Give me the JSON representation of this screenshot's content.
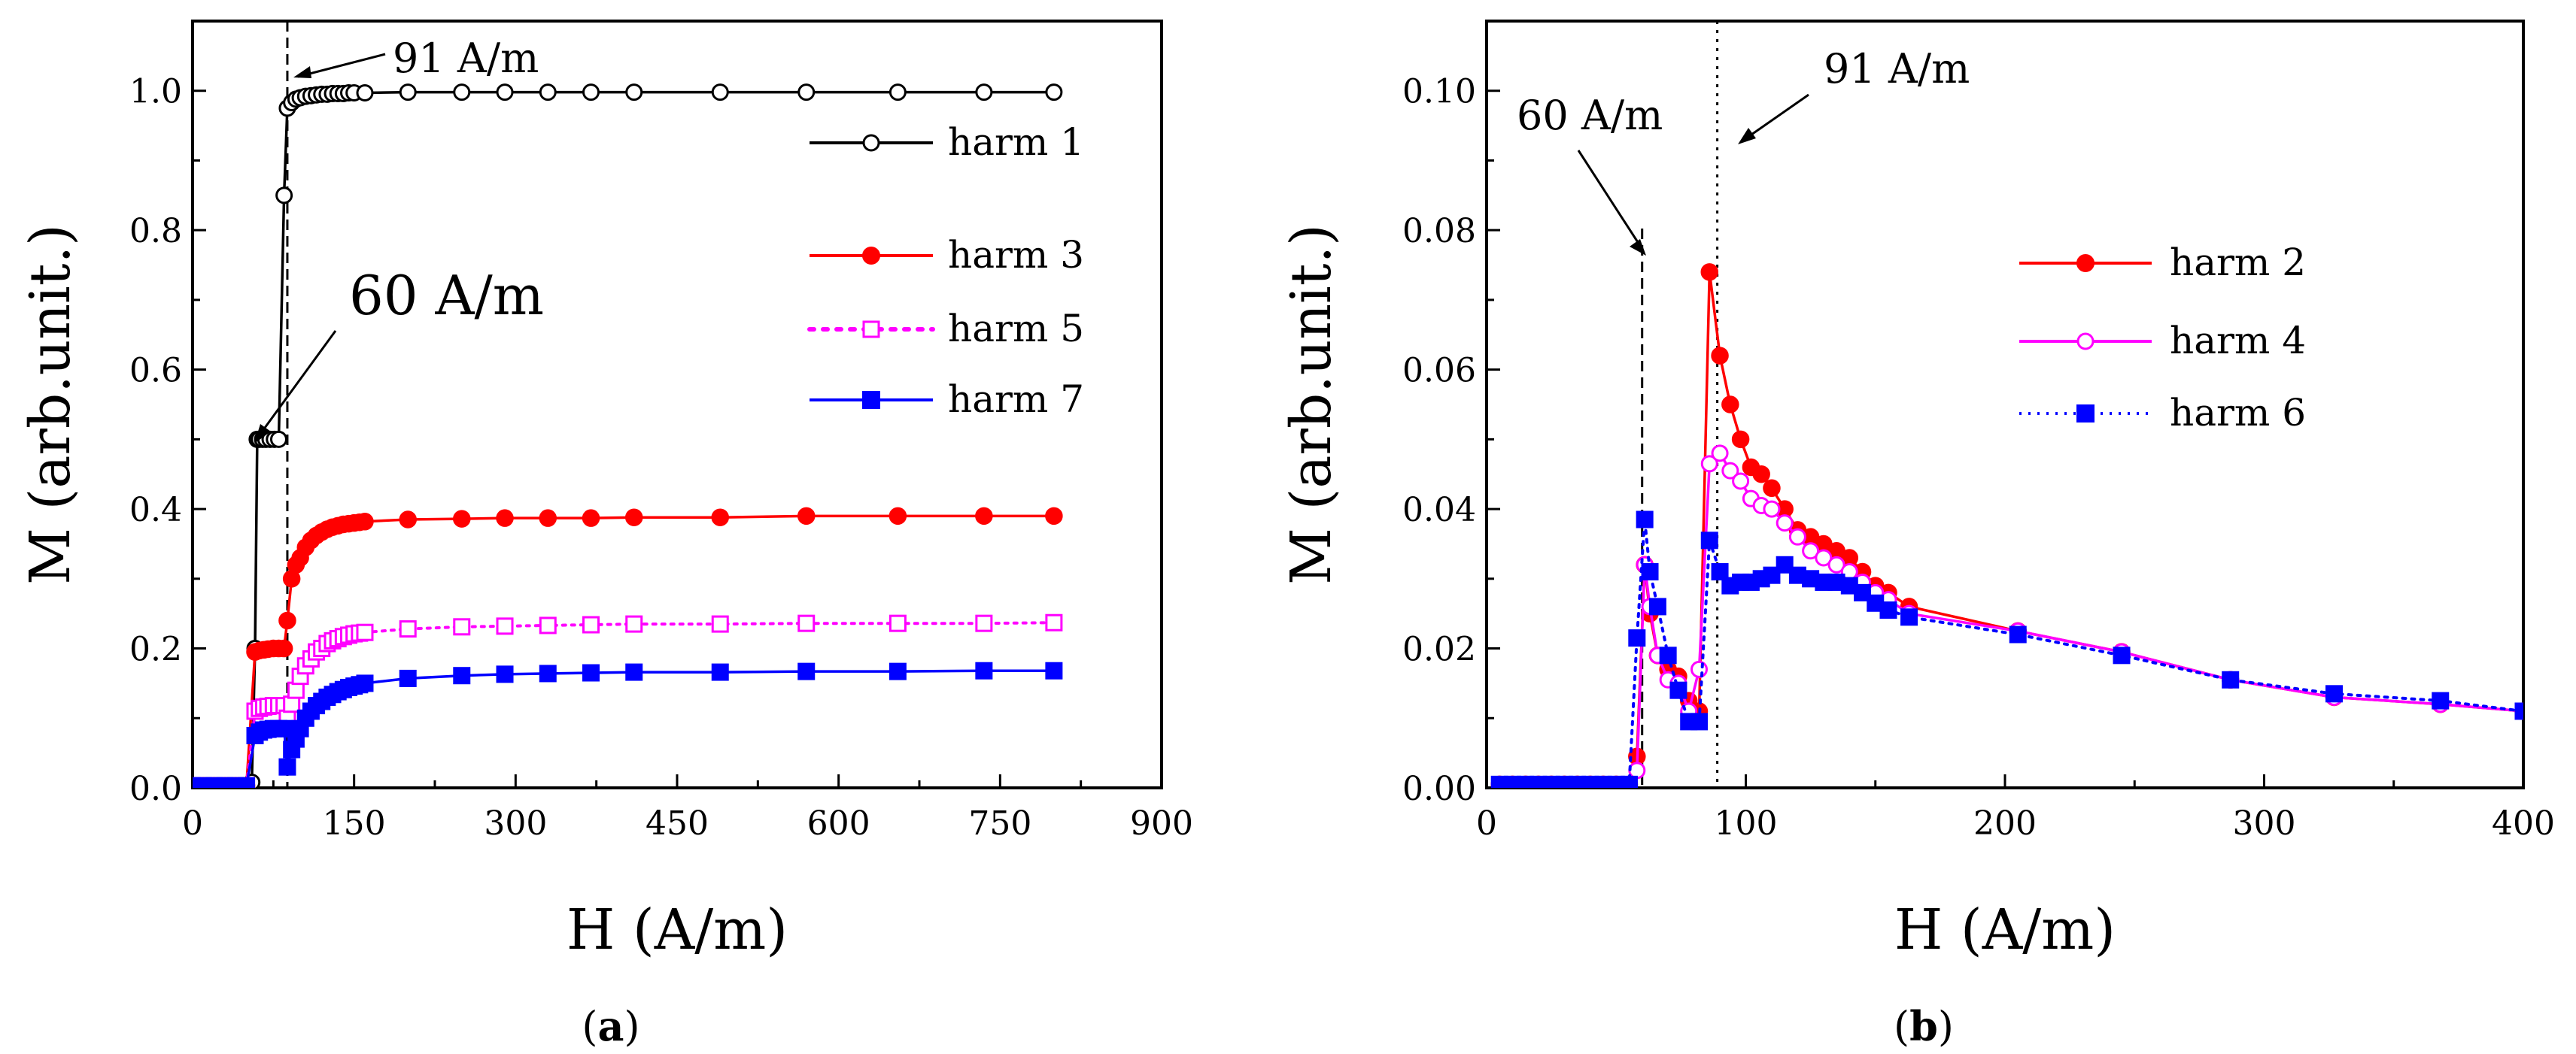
{
  "figure": {
    "panels": [
      "(a)",
      "(b)"
    ]
  },
  "chart_data": [
    {
      "type": "scatter",
      "panel": "a",
      "caption": "(a)",
      "caption_letter": "a",
      "xlabel": "H (A/m)",
      "ylabel": "M (arb.unit.)",
      "xlim": [
        0,
        900
      ],
      "ylim": [
        0,
        1.1
      ],
      "xticks": [
        0,
        150,
        300,
        450,
        600,
        750,
        900
      ],
      "yticks": [
        0.0,
        0.2,
        0.4,
        0.6,
        0.8,
        1.0
      ],
      "xtick_labels": [
        "0",
        "150",
        "300",
        "450",
        "600",
        "750",
        "900"
      ],
      "ytick_labels": [
        "0.0",
        "0.2",
        "0.4",
        "0.6",
        "0.8",
        "1.0"
      ],
      "legend_position": "right",
      "annotations": [
        {
          "text": "91 A/m",
          "style": "small"
        },
        {
          "text": "60 A/m",
          "style": "big"
        }
      ],
      "vlines": [
        88
      ],
      "series": [
        {
          "name": "harm 1",
          "color": "#000000",
          "marker": "open-circle",
          "line": "solid",
          "x": [
            0,
            10,
            20,
            30,
            40,
            50,
            55,
            58,
            60,
            62,
            65,
            68,
            72,
            76,
            80,
            85,
            88,
            92,
            96,
            100,
            105,
            110,
            115,
            120,
            125,
            130,
            135,
            140,
            145,
            150,
            160,
            200,
            250,
            290,
            330,
            370,
            410,
            490,
            570,
            655,
            735,
            800
          ],
          "y": [
            0.003,
            0.003,
            0.003,
            0.003,
            0.003,
            0.003,
            0.008,
            0.2,
            0.5,
            0.5,
            0.5,
            0.5,
            0.5,
            0.5,
            0.5,
            0.85,
            0.975,
            0.983,
            0.988,
            0.99,
            0.992,
            0.993,
            0.994,
            0.995,
            0.995,
            0.996,
            0.996,
            0.996,
            0.997,
            0.997,
            0.997,
            0.998,
            0.998,
            0.998,
            0.998,
            0.998,
            0.998,
            0.998,
            0.998,
            0.998,
            0.998,
            0.998
          ]
        },
        {
          "name": "harm 3",
          "color": "#ff0000",
          "marker": "filled-circle",
          "line": "solid",
          "x": [
            0,
            10,
            20,
            30,
            40,
            50,
            58,
            62,
            66,
            70,
            75,
            80,
            85,
            88,
            92,
            96,
            100,
            105,
            110,
            115,
            120,
            125,
            130,
            135,
            140,
            145,
            150,
            155,
            160,
            200,
            250,
            290,
            330,
            370,
            410,
            490,
            570,
            655,
            735,
            800
          ],
          "y": [
            0.003,
            0.003,
            0.003,
            0.003,
            0.003,
            0.003,
            0.195,
            0.197,
            0.198,
            0.199,
            0.2,
            0.2,
            0.2,
            0.24,
            0.3,
            0.32,
            0.33,
            0.345,
            0.355,
            0.362,
            0.367,
            0.371,
            0.374,
            0.376,
            0.378,
            0.379,
            0.38,
            0.381,
            0.382,
            0.385,
            0.386,
            0.387,
            0.387,
            0.387,
            0.388,
            0.388,
            0.39,
            0.39,
            0.39,
            0.39
          ]
        },
        {
          "name": "harm 5",
          "color": "#ff00ff",
          "marker": "open-square",
          "line": "dotted",
          "x": [
            0,
            10,
            20,
            30,
            40,
            50,
            58,
            62,
            66,
            70,
            75,
            80,
            85,
            88,
            92,
            96,
            100,
            105,
            110,
            115,
            120,
            125,
            130,
            135,
            140,
            145,
            150,
            155,
            160,
            200,
            250,
            290,
            330,
            370,
            410,
            490,
            570,
            655,
            735,
            800
          ],
          "y": [
            0.003,
            0.003,
            0.003,
            0.003,
            0.003,
            0.003,
            0.11,
            0.114,
            0.116,
            0.117,
            0.118,
            0.118,
            0.118,
            0.1,
            0.12,
            0.14,
            0.16,
            0.175,
            0.185,
            0.195,
            0.2,
            0.207,
            0.211,
            0.214,
            0.217,
            0.219,
            0.221,
            0.222,
            0.223,
            0.228,
            0.231,
            0.232,
            0.233,
            0.234,
            0.235,
            0.235,
            0.236,
            0.236,
            0.236,
            0.237
          ]
        },
        {
          "name": "harm 7",
          "color": "#0000ff",
          "marker": "filled-square",
          "line": "solid",
          "x": [
            0,
            10,
            20,
            30,
            40,
            50,
            58,
            62,
            66,
            70,
            75,
            80,
            85,
            88,
            92,
            96,
            100,
            105,
            110,
            115,
            120,
            125,
            130,
            135,
            140,
            145,
            150,
            155,
            160,
            200,
            250,
            290,
            330,
            370,
            410,
            490,
            570,
            655,
            735,
            800
          ],
          "y": [
            0.003,
            0.003,
            0.003,
            0.003,
            0.003,
            0.003,
            0.075,
            0.08,
            0.083,
            0.084,
            0.085,
            0.085,
            0.085,
            0.03,
            0.055,
            0.07,
            0.085,
            0.1,
            0.11,
            0.118,
            0.124,
            0.13,
            0.134,
            0.138,
            0.141,
            0.144,
            0.146,
            0.148,
            0.15,
            0.157,
            0.161,
            0.163,
            0.164,
            0.165,
            0.166,
            0.166,
            0.167,
            0.167,
            0.168,
            0.168
          ]
        }
      ]
    },
    {
      "type": "scatter",
      "panel": "b",
      "caption": "(b)",
      "caption_letter": "b",
      "xlabel": "H (A/m)",
      "ylabel": "M (arb.unit.)",
      "xlim": [
        0,
        400
      ],
      "ylim": [
        0,
        0.11
      ],
      "xticks": [
        0,
        100,
        200,
        300,
        400
      ],
      "yticks": [
        0.0,
        0.02,
        0.04,
        0.06,
        0.08,
        0.1
      ],
      "xtick_labels": [
        "0",
        "100",
        "200",
        "300",
        "400"
      ],
      "ytick_labels": [
        "0.00",
        "0.02",
        "0.04",
        "0.06",
        "0.08",
        "0.10"
      ],
      "legend_position": "right",
      "annotations": [
        {
          "text": "60 A/m"
        },
        {
          "text": "91 A/m"
        }
      ],
      "vlines": [
        60,
        89
      ],
      "series": [
        {
          "name": "harm 2",
          "color": "#ff0000",
          "marker": "filled-circle",
          "line": "solid",
          "x": [
            5,
            10,
            15,
            20,
            25,
            30,
            35,
            40,
            45,
            50,
            55,
            58,
            61,
            63,
            66,
            70,
            74,
            78,
            82,
            86,
            90,
            94,
            98,
            102,
            106,
            110,
            115,
            120,
            125,
            130,
            135,
            140,
            145,
            150,
            155,
            163,
            205,
            245,
            287,
            327,
            368,
            400
          ],
          "y": [
            0.0005,
            0.0005,
            0.0005,
            0.0005,
            0.0005,
            0.0005,
            0.0005,
            0.0005,
            0.0005,
            0.0005,
            0.0005,
            0.0045,
            0.032,
            0.025,
            0.019,
            0.017,
            0.016,
            0.0125,
            0.011,
            0.074,
            0.062,
            0.055,
            0.05,
            0.046,
            0.045,
            0.043,
            0.04,
            0.037,
            0.036,
            0.035,
            0.034,
            0.033,
            0.031,
            0.029,
            0.028,
            0.026,
            0.0225,
            0.0195,
            0.0155,
            0.013,
            0.012,
            0.011
          ]
        },
        {
          "name": "harm 4",
          "color": "#ff00ff",
          "marker": "open-circle",
          "line": "solid",
          "x": [
            5,
            10,
            15,
            20,
            25,
            30,
            35,
            40,
            45,
            50,
            55,
            58,
            61,
            63,
            66,
            70,
            74,
            78,
            82,
            86,
            90,
            94,
            98,
            102,
            106,
            110,
            115,
            120,
            125,
            130,
            135,
            140,
            145,
            150,
            155,
            163,
            205,
            245,
            287,
            327,
            368,
            400
          ],
          "y": [
            0.0005,
            0.0005,
            0.0005,
            0.0005,
            0.0005,
            0.0005,
            0.0005,
            0.0005,
            0.0005,
            0.0005,
            0.0005,
            0.0025,
            0.032,
            0.026,
            0.019,
            0.0155,
            0.015,
            0.011,
            0.017,
            0.0465,
            0.048,
            0.0455,
            0.044,
            0.0415,
            0.0405,
            0.04,
            0.038,
            0.036,
            0.034,
            0.033,
            0.032,
            0.031,
            0.0295,
            0.028,
            0.027,
            0.025,
            0.0225,
            0.0195,
            0.0155,
            0.013,
            0.012,
            0.011
          ]
        },
        {
          "name": "harm 6",
          "color": "#0000ff",
          "marker": "filled-square",
          "line": "dotted",
          "x": [
            5,
            10,
            15,
            20,
            25,
            30,
            35,
            40,
            45,
            50,
            55,
            58,
            61,
            63,
            66,
            70,
            74,
            78,
            82,
            86,
            90,
            94,
            98,
            102,
            106,
            110,
            115,
            120,
            125,
            130,
            135,
            140,
            145,
            150,
            155,
            163,
            205,
            245,
            287,
            327,
            368,
            400
          ],
          "y": [
            0.0005,
            0.0005,
            0.0005,
            0.0005,
            0.0005,
            0.0005,
            0.0005,
            0.0005,
            0.0005,
            0.0005,
            0.0005,
            0.0215,
            0.0385,
            0.031,
            0.026,
            0.019,
            0.014,
            0.0095,
            0.0095,
            0.0355,
            0.031,
            0.029,
            0.0295,
            0.0295,
            0.03,
            0.0305,
            0.032,
            0.0305,
            0.03,
            0.0295,
            0.0295,
            0.029,
            0.028,
            0.0265,
            0.0255,
            0.0245,
            0.022,
            0.019,
            0.0155,
            0.0135,
            0.0125,
            0.011
          ]
        }
      ]
    }
  ]
}
